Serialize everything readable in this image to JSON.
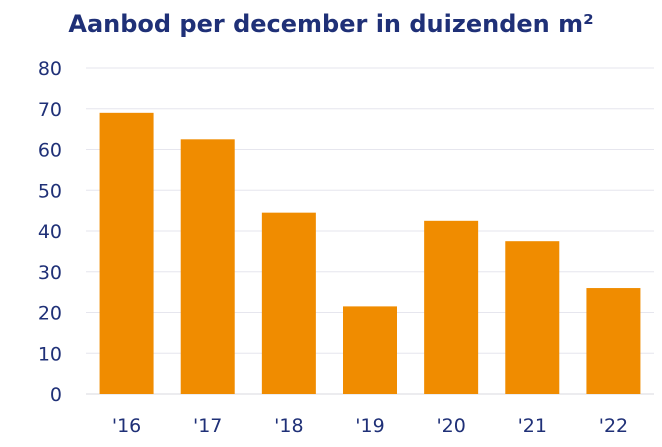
{
  "chart_data": {
    "type": "bar",
    "title": "Aanbod per december in duizenden m²",
    "xlabel": "",
    "ylabel": "",
    "categories": [
      "'16",
      "'17",
      "'18",
      "'19",
      "'20",
      "'21",
      "'22"
    ],
    "values": [
      69,
      62.5,
      44.5,
      21.5,
      42.5,
      37.5,
      26
    ],
    "ylim": [
      0,
      80
    ],
    "yticks": [
      0,
      10,
      20,
      30,
      40,
      50,
      60,
      70,
      80
    ],
    "grid": true,
    "legend": "none",
    "bar_color": "#f08c00",
    "text_color": "#1f3077"
  }
}
